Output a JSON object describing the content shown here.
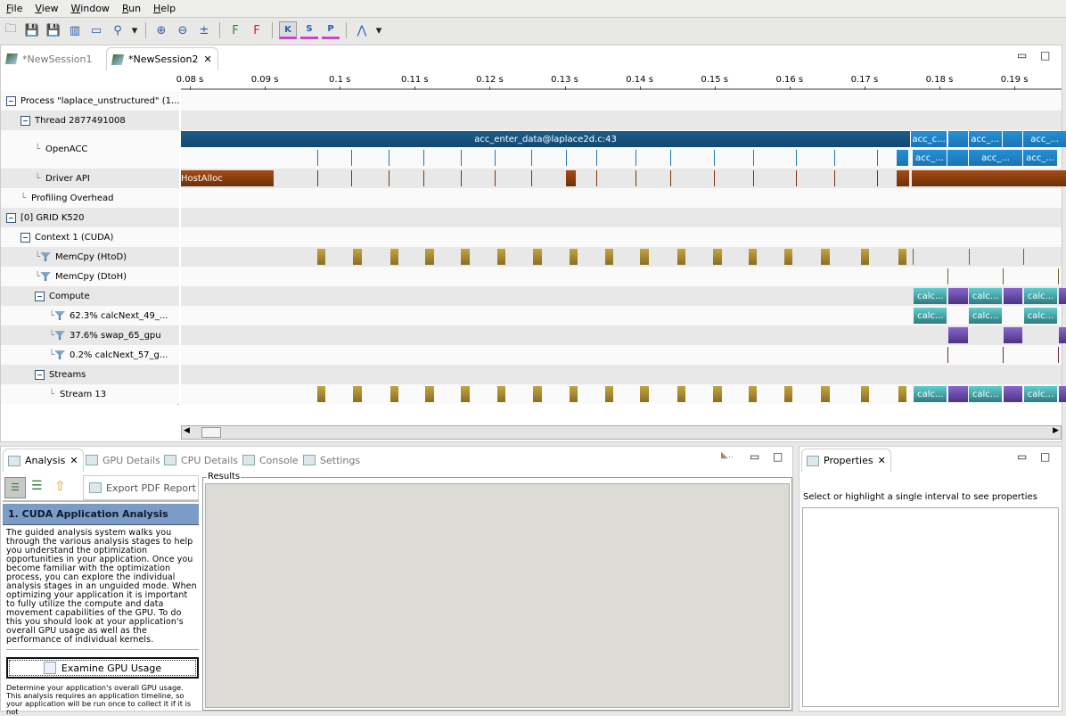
{
  "menu": [
    "File",
    "View",
    "Window",
    "Run",
    "Help"
  ],
  "toolbar_icons": [
    "new-session-icon",
    "save-icon",
    "save-all-icon",
    "import-icon",
    "export-icon",
    "search-icon",
    "dropdown-icon",
    "zoom-in-icon",
    "zoom-out-icon",
    "zoom-fit-icon",
    "filter-icon",
    "clear-filter-icon",
    "kernel-color-icon",
    "stream-color-icon",
    "process-color-icon",
    "dependency-icon",
    "dropdown-icon"
  ],
  "sessions": [
    {
      "label": "*NewSession1",
      "active": false
    },
    {
      "label": "*NewSession2",
      "active": true
    }
  ],
  "timeline": {
    "ticks": [
      "0.08 s",
      "0.09 s",
      "0.1 s",
      "0.11 s",
      "0.12 s",
      "0.13 s",
      "0.14 s",
      "0.15 s",
      "0.16 s",
      "0.17 s",
      "0.18 s",
      "0.19 s"
    ],
    "tick_values": [
      0.08,
      0.09,
      0.1,
      0.11,
      0.12,
      0.13,
      0.14,
      0.15,
      0.16,
      0.17,
      0.18,
      0.19
    ],
    "rows": [
      {
        "label": "Process \"laplace_unstructured\" (1...",
        "indent": 0,
        "toggle": true
      },
      {
        "label": "Thread 2877491008",
        "indent": 1,
        "toggle": true
      },
      {
        "label": "OpenACC",
        "indent": 2,
        "toggle": false,
        "double": true
      },
      {
        "label": "Driver API",
        "indent": 2,
        "toggle": false
      },
      {
        "label": "Profiling Overhead",
        "indent": 1,
        "toggle": false
      },
      {
        "label": "[0] GRID K520",
        "indent": 0,
        "toggle": true
      },
      {
        "label": "Context 1 (CUDA)",
        "indent": 1,
        "toggle": true
      },
      {
        "label": "MemCpy (HtoD)",
        "indent": 2,
        "filter": true
      },
      {
        "label": "MemCpy (DtoH)",
        "indent": 2,
        "filter": true
      },
      {
        "label": "Compute",
        "indent": 2,
        "toggle": true
      },
      {
        "label": "62.3% calcNext_49_...",
        "indent": 3,
        "filter": true
      },
      {
        "label": "37.6% swap_65_gpu",
        "indent": 3,
        "filter": true
      },
      {
        "label": "0.2% calcNext_57_g...",
        "indent": 3,
        "filter": true
      },
      {
        "label": "Streams",
        "indent": 2,
        "toggle": true
      },
      {
        "label": "Stream 13",
        "indent": 3,
        "toggle": false
      }
    ],
    "openacc_main": {
      "label": "acc_enter_data@laplace2d.c:43",
      "start": 0.0775,
      "end": 0.1762
    },
    "openacc_top": [
      {
        "label": "acc_c...",
        "start": 0.1762,
        "end": 0.1811
      },
      {
        "label": "",
        "start": 0.1812,
        "end": 0.1839
      },
      {
        "label": "acc_...",
        "start": 0.1839,
        "end": 0.1884
      },
      {
        "label": "",
        "start": 0.1885,
        "end": 0.1912
      },
      {
        "label": "acc_...",
        "start": 0.1912,
        "end": 0.197
      }
    ],
    "openacc_sub": [
      {
        "label": "",
        "start": 0.1743,
        "end": 0.1759
      },
      {
        "label": "acc_...",
        "start": 0.1764,
        "end": 0.1811
      },
      {
        "label": "",
        "start": 0.1811,
        "end": 0.1839
      },
      {
        "label": "acc_...",
        "start": 0.1839,
        "end": 0.1912
      },
      {
        "label": "acc_...",
        "start": 0.1912,
        "end": 0.1958
      }
    ],
    "api_lines": [
      0.097,
      0.1015,
      0.1065,
      0.1112,
      0.1162,
      0.1207,
      0.1256,
      0.1302,
      0.1342,
      0.1395,
      0.1441,
      0.1499,
      0.1552,
      0.1609,
      0.166,
      0.1717
    ],
    "driver_blocks": [
      {
        "label": "HostAlloc",
        "start": 0.0775,
        "end": 0.0913
      },
      {
        "label": "",
        "start": 0.1302,
        "end": 0.1316
      },
      {
        "label": "",
        "start": 0.1743,
        "end": 0.1761
      },
      {
        "label": "",
        "start": 0.1763,
        "end": 0.197
      }
    ],
    "htod": [
      0.097,
      0.1018,
      0.1067,
      0.1114,
      0.1162,
      0.121,
      0.1258,
      0.1306,
      0.1354,
      0.1401,
      0.145,
      0.1498,
      0.1545,
      0.1593,
      0.1642,
      0.1695,
      0.1745
    ],
    "htod_lines": [
      0.1764,
      0.1839,
      0.1912
    ],
    "dtoh_lines": [
      0.1811,
      0.1885,
      0.1958
    ],
    "calc": [
      {
        "start": 0.1766,
        "end": 0.1811
      },
      {
        "start": 0.1839,
        "end": 0.1885
      },
      {
        "start": 0.1913,
        "end": 0.1958
      }
    ],
    "swap": [
      {
        "start": 0.1812,
        "end": 0.1839
      },
      {
        "start": 0.1886,
        "end": 0.1912
      },
      {
        "start": 0.1959,
        "end": 0.197
      }
    ],
    "calc_label": "calc...",
    "colors": {
      "openacc_dark": "#174f78",
      "openacc": "#1e82c6",
      "driver": "#8c3f10",
      "memcpy": "#a88a30",
      "calc": "#3aa6a6",
      "swap": "#6a4ca8"
    }
  },
  "bottom": {
    "tabs": [
      {
        "label": "Analysis",
        "active": true,
        "icon": "analysis-icon"
      },
      {
        "label": "GPU Details",
        "icon": "gpu-details-icon"
      },
      {
        "label": "CPU Details",
        "icon": "cpu-details-icon"
      },
      {
        "label": "Console",
        "icon": "console-icon"
      },
      {
        "label": "Settings",
        "icon": "settings-icon"
      }
    ],
    "export_label": "Export PDF Report",
    "step_title": "1. CUDA Application Analysis",
    "description": "The guided analysis system walks you through the various analysis stages to help you understand the optimization opportunities in your application. Once you become familiar with the optimization process, you can explore the individual analysis stages in an unguided mode. When optimizing your application it is important to fully utilize the compute and data movement capabilities of the GPU. To do this you should look at your application's overall GPU usage as well as the performance of individual kernels.",
    "examine_label": "Examine GPU Usage",
    "examine_desc": "Determine your application's overall GPU usage. This analysis requires an application timeline, so your application will be run once to collect it if it is not",
    "results_label": "Results"
  },
  "properties": {
    "tab": "Properties",
    "message": "Select or highlight a single interval to see properties"
  }
}
